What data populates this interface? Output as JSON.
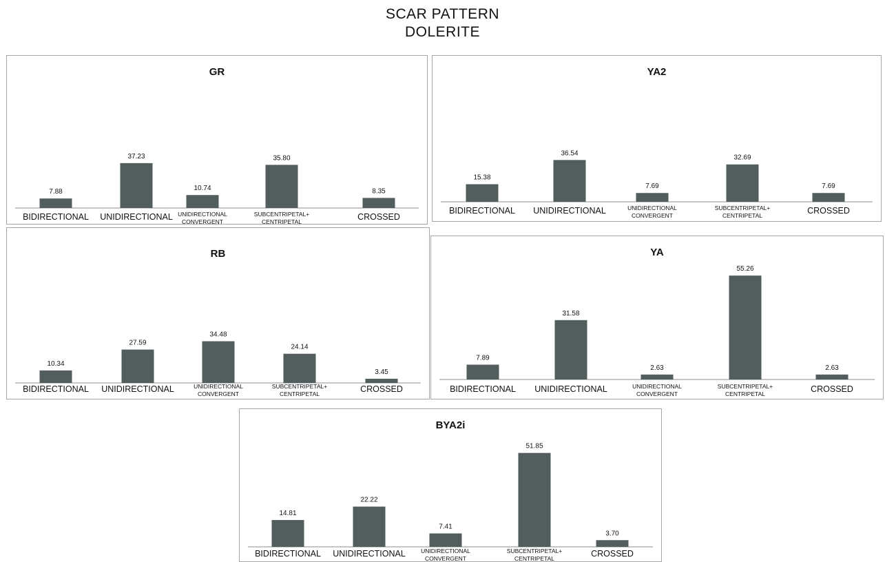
{
  "figure": {
    "title_line1": "SCAR PATTERN",
    "title_line2": "DOLERITE",
    "bar_color": "#525d5d",
    "axis_color": "#8c8c8c",
    "text_color": "#111111",
    "border_color": "#a5a5a5"
  },
  "categories": [
    [
      "BIDIRECTIONAL"
    ],
    [
      "UNIDIRECTIONAL"
    ],
    [
      "UNIDIRECTIONAL",
      "CONVERGENT"
    ],
    [
      "SUBCENTRIPETAL+",
      "CENTRIPETAL"
    ],
    [
      "CROSSED"
    ]
  ],
  "chart_data": [
    {
      "type": "bar",
      "title": "GR",
      "categories": [
        "BIDIRECTIONAL",
        "UNIDIRECTIONAL",
        "UNIDIRECTIONAL CONVERGENT",
        "SUBCENTRIPETAL+ CENTRIPETAL",
        "CROSSED"
      ],
      "values": [
        7.88,
        37.23,
        10.74,
        35.8,
        8.35
      ],
      "value_labels": [
        "7.88",
        "37.23",
        "10.74",
        "35.80",
        "8.35"
      ],
      "ylim": [
        0,
        60
      ],
      "grid": false
    },
    {
      "type": "bar",
      "title": "YA2",
      "categories": [
        "BIDIRECTIONAL",
        "UNIDIRECTIONAL",
        "UNIDIRECTIONAL CONVERGENT",
        "SUBCENTRIPETAL+ CENTRIPETAL",
        "CROSSED"
      ],
      "values": [
        15.38,
        36.54,
        7.69,
        32.69,
        7.69
      ],
      "value_labels": [
        "15.38",
        "36.54",
        "7.69",
        "32.69",
        "7.69"
      ],
      "ylim": [
        0,
        60
      ],
      "grid": false
    },
    {
      "type": "bar",
      "title": "RB",
      "categories": [
        "BIDIRECTIONAL",
        "UNIDIRECTIONAL",
        "UNIDIRECTIONAL CONVERGENT",
        "SUBCENTRIPETAL+ CENTRIPETAL",
        "CROSSED"
      ],
      "values": [
        10.34,
        27.59,
        34.48,
        24.14,
        3.45
      ],
      "value_labels": [
        "10.34",
        "27.59",
        "34.48",
        "24.14",
        "3.45"
      ],
      "ylim": [
        0,
        60
      ],
      "grid": false
    },
    {
      "type": "bar",
      "title": "YA",
      "categories": [
        "BIDIRECTIONAL",
        "UNIDIRECTIONAL",
        "UNIDIRECTIONAL CONVERGENT",
        "SUBCENTRIPETAL+ CENTRIPETAL",
        "CROSSED"
      ],
      "values": [
        7.89,
        31.58,
        2.63,
        55.26,
        2.63
      ],
      "value_labels": [
        "7.89",
        "31.58",
        "2.63",
        "55.26",
        "2.63"
      ],
      "ylim": [
        0,
        60
      ],
      "grid": false
    },
    {
      "type": "bar",
      "title": "BYA2i",
      "categories": [
        "BIDIRECTIONAL",
        "UNIDIRECTIONAL",
        "UNIDIRECTIONAL CONVERGENT",
        "SUBCENTRIPETAL+ CENTRIPETAL",
        "CROSSED"
      ],
      "values": [
        14.81,
        22.22,
        7.41,
        51.85,
        3.7
      ],
      "value_labels": [
        "14.81",
        "22.22",
        "7.41",
        "51.85",
        "3.70"
      ],
      "ylim": [
        0,
        60
      ],
      "grid": false
    }
  ]
}
